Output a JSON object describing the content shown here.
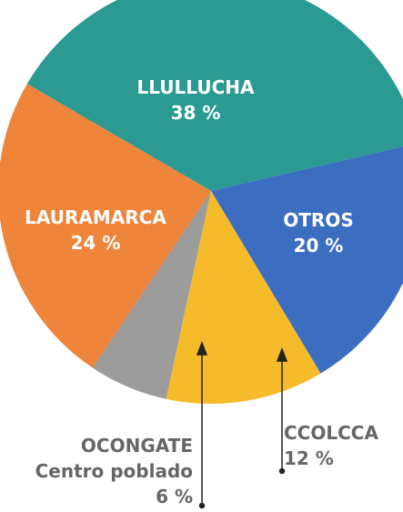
{
  "chart_data": {
    "type": "pie",
    "categories": [
      "LLULLUCHA",
      "OTROS",
      "CCOLCCA",
      "OCONGATE\nCentro poblado",
      "LAURAMARCA"
    ],
    "values": [
      38,
      20,
      12,
      6,
      24
    ],
    "value_labels": [
      "38 %",
      "20 %",
      "12 %",
      "6 %",
      "24 %"
    ],
    "colors": [
      "#2a9a93",
      "#3b6dc1",
      "#f6bb2a",
      "#9c9c9c",
      "#ef843b"
    ]
  }
}
